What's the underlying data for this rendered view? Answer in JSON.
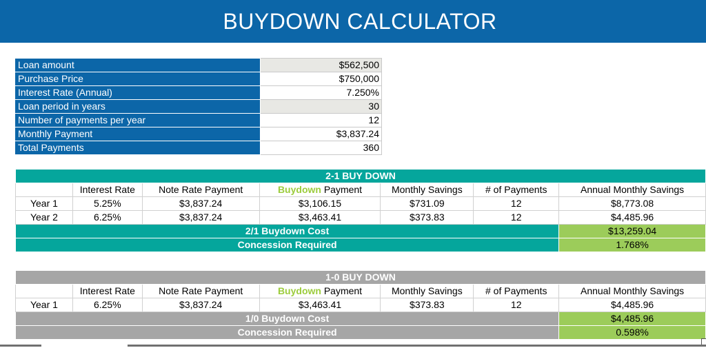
{
  "title": "BUYDOWN CALCULATOR",
  "loan": [
    {
      "label": "Loan amount",
      "value": "$562,500"
    },
    {
      "label": "Purchase Price",
      "value": "$750,000"
    },
    {
      "label": "Interest Rate (Annual)",
      "value": "7.250%"
    },
    {
      "label": "Loan period in years",
      "value": "30"
    },
    {
      "label": "Number of payments per year",
      "value": "12"
    },
    {
      "label": "Monthly Payment",
      "value": "$3,837.24"
    },
    {
      "label": "Total Payments",
      "value": "360"
    }
  ],
  "headers": {
    "interest_rate": "Interest Rate",
    "note_rate_payment": "Note Rate Payment",
    "buydown_word": "Buydown",
    "buydown_payment_rest": " Payment",
    "monthly_savings": "Monthly Savings",
    "num_payments": "# of Payments",
    "annual_monthly_savings": "Annual Monthly Savings"
  },
  "buydown21": {
    "title": "2-1 BUY DOWN",
    "rows": [
      {
        "year": "Year 1",
        "rate": "5.25%",
        "note": "$3,837.24",
        "buydown": "$3,106.15",
        "savings": "$731.09",
        "payments": "12",
        "annual": "$8,773.08"
      },
      {
        "year": "Year 2",
        "rate": "6.25%",
        "note": "$3,837.24",
        "buydown": "$3,463.41",
        "savings": "$373.83",
        "payments": "12",
        "annual": "$4,485.96"
      }
    ],
    "cost_label": "2/1 Buydown Cost",
    "cost_value": "$13,259.04",
    "concession_label": "Concession Required",
    "concession_value": "1.768%"
  },
  "buydown10": {
    "title": "1-0 BUY DOWN",
    "rows": [
      {
        "year": "Year 1",
        "rate": "6.25%",
        "note": "$3,837.24",
        "buydown": "$3,463.41",
        "savings": "$373.83",
        "payments": "12",
        "annual": "$4,485.96"
      }
    ],
    "cost_label": "1/0 Buydown Cost",
    "cost_value": "$4,485.96",
    "concession_label": "Concession Required",
    "concession_value": "0.598%"
  },
  "colors": {
    "header_blue": "#0c66a8",
    "teal": "#05a69c",
    "gray_band": "#a6a6a6",
    "green": "#9ccc5a",
    "buydown_word": "#9ccc3c"
  }
}
